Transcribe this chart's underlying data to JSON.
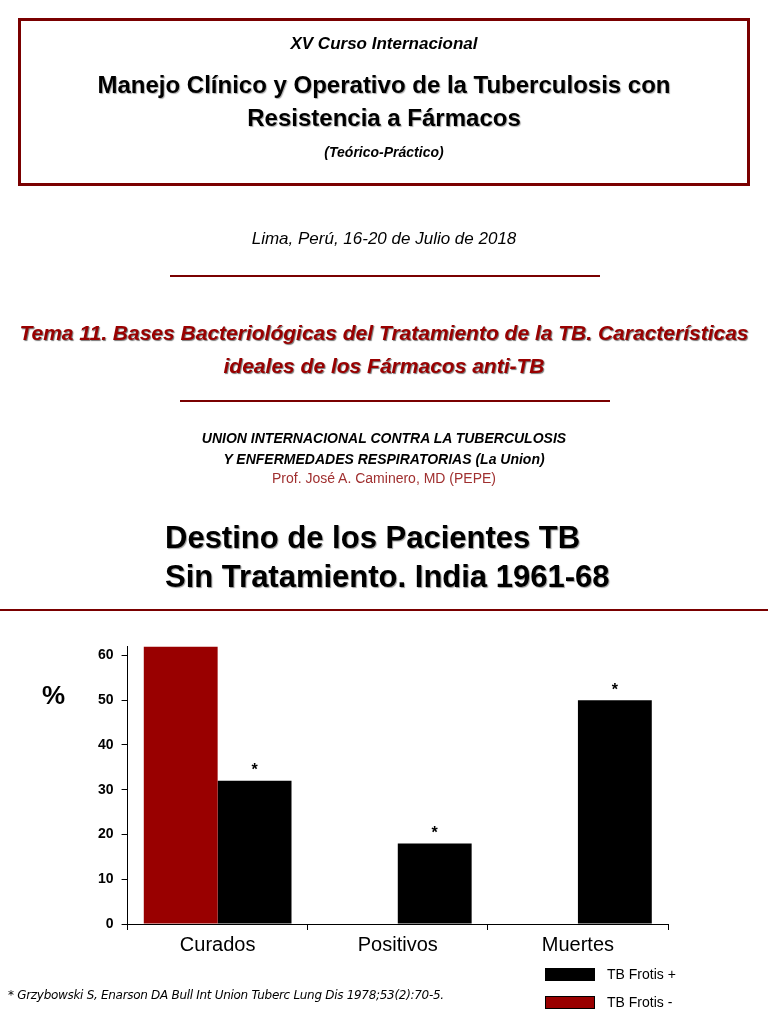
{
  "chart_data": {
    "type": "bar",
    "title": "Destino de los Pacientes TB\nSin Tratamiento. India 1961-68",
    "ylabel": "%",
    "categories": [
      "Curados",
      "Positivos",
      "Muertes"
    ],
    "series": [
      {
        "name": "TB Frotis -",
        "color": "#990000",
        "values": [
          62,
          null,
          null
        ]
      },
      {
        "name": "TB Frotis +",
        "color": "#000000",
        "values": [
          32,
          18,
          50
        ]
      }
    ],
    "ylim": [
      0,
      62
    ],
    "yticks": [
      0,
      10,
      20,
      30,
      40,
      50,
      60
    ],
    "grid": false,
    "legend": "bottom right",
    "annotations": [
      "XV Curso Internacional",
      "Manejo Clínico y Operativo de la Tuberculosis con Resistencia a Fármacos",
      "(Teórico-Práctico)",
      "Lima, Perú, 16-20 de Julio de 2018",
      "Tema 11. Bases Bacteriológicas del Tratamiento de la TB. Características ideales de los Fármacos anti-TB",
      "UNION INTERNACIONAL CONTRA LA TUBERCULOSIS\nY ENFERMEDADES RESPIRATORIAS  (La Union)",
      "Prof. José A. Caminero, MD (PEPE)",
      {
        "text": "*",
        "x": "Curados",
        "y": 32
      },
      {
        "text": "*",
        "x": "Positivos",
        "y": 18
      },
      {
        "text": "*",
        "x": "Muertes",
        "y": 50
      },
      "*  Grzybowski S, Enarson DA Bull Int Union Tuberc Lung Dis 1978;53(2):70-5."
    ]
  }
}
